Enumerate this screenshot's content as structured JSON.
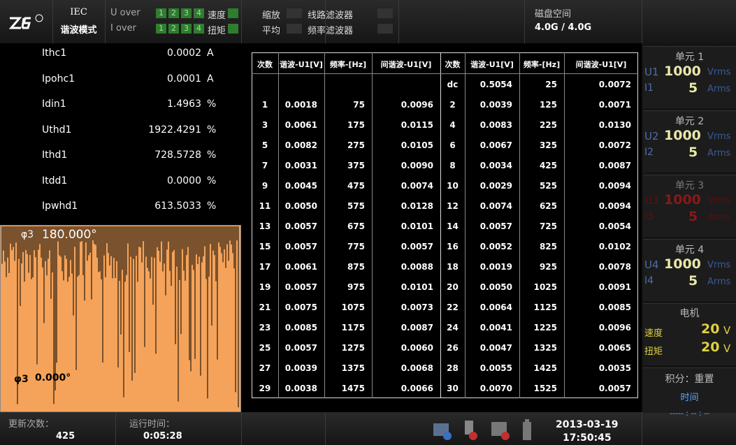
{
  "header": {
    "mode_line1": "IEC",
    "mode_line2": "谐波模式",
    "u_over": "U over",
    "i_over": "I over",
    "channels": [
      "1",
      "2",
      "3",
      "4"
    ],
    "speed": "速度",
    "torque": "扭矩",
    "zoom": "缩放",
    "line_filter": "线路滤波器",
    "average": "平均",
    "freq_filter": "频率滤波器",
    "disk_label": "磁盘空间",
    "disk_value": "4.0G / 4.0G"
  },
  "measurements": [
    {
      "name": "Ithc1",
      "value": "0.0002",
      "unit": "A"
    },
    {
      "name": "Ipohc1",
      "value": "0.0001",
      "unit": "A"
    },
    {
      "name": "Idin1",
      "value": "1.4963",
      "unit": "%"
    },
    {
      "name": "Uthd1",
      "value": "1922.4291",
      "unit": "%"
    },
    {
      "name": "Ithd1",
      "value": "728.5728",
      "unit": "%"
    },
    {
      "name": "Itdd1",
      "value": "0.0000",
      "unit": "%"
    },
    {
      "name": "Ipwhd1",
      "value": "613.5033",
      "unit": "%"
    }
  ],
  "waveform": {
    "top_label": "φ3",
    "top_value": "180.000°",
    "bottom_label": "φ3",
    "bottom_value": "0.000°"
  },
  "table": {
    "headers": [
      "次数",
      "谐波-U1[V]",
      "频率-[Hz]",
      "间谐波-U1[V]",
      "次数",
      "谐波-U1[V]",
      "频率-[Hz]",
      "间谐波-U1[V]"
    ],
    "rows": [
      [
        null,
        null,
        null,
        null,
        "dc",
        "0.5054",
        "25",
        "0.0072"
      ],
      [
        "1",
        "0.0018",
        "75",
        "0.0096",
        "2",
        "0.0039",
        "125",
        "0.0071"
      ],
      [
        "3",
        "0.0061",
        "175",
        "0.0115",
        "4",
        "0.0083",
        "225",
        "0.0130"
      ],
      [
        "5",
        "0.0082",
        "275",
        "0.0105",
        "6",
        "0.0067",
        "325",
        "0.0072"
      ],
      [
        "7",
        "0.0031",
        "375",
        "0.0090",
        "8",
        "0.0034",
        "425",
        "0.0087"
      ],
      [
        "9",
        "0.0045",
        "475",
        "0.0074",
        "10",
        "0.0029",
        "525",
        "0.0094"
      ],
      [
        "11",
        "0.0050",
        "575",
        "0.0128",
        "12",
        "0.0074",
        "625",
        "0.0094"
      ],
      [
        "13",
        "0.0057",
        "675",
        "0.0101",
        "14",
        "0.0057",
        "725",
        "0.0054"
      ],
      [
        "15",
        "0.0057",
        "775",
        "0.0057",
        "16",
        "0.0052",
        "825",
        "0.0102"
      ],
      [
        "17",
        "0.0061",
        "875",
        "0.0088",
        "18",
        "0.0019",
        "925",
        "0.0078"
      ],
      [
        "19",
        "0.0057",
        "975",
        "0.0101",
        "20",
        "0.0050",
        "1025",
        "0.0091"
      ],
      [
        "21",
        "0.0075",
        "1075",
        "0.0073",
        "22",
        "0.0064",
        "1125",
        "0.0085"
      ],
      [
        "23",
        "0.0085",
        "1175",
        "0.0087",
        "24",
        "0.0041",
        "1225",
        "0.0096"
      ],
      [
        "25",
        "0.0057",
        "1275",
        "0.0060",
        "26",
        "0.0047",
        "1325",
        "0.0065"
      ],
      [
        "27",
        "0.0039",
        "1375",
        "0.0068",
        "28",
        "0.0055",
        "1425",
        "0.0035"
      ],
      [
        "29",
        "0.0038",
        "1475",
        "0.0066",
        "30",
        "0.0070",
        "1525",
        "0.0057"
      ]
    ]
  },
  "units": [
    {
      "title": "单元 1",
      "u_label": "U1",
      "u_value": "1000",
      "u_unit": "Vrms",
      "i_label": "I1",
      "i_value": "5",
      "i_unit": "Arms"
    },
    {
      "title": "单元 2",
      "u_label": "U2",
      "u_value": "1000",
      "u_unit": "Vrms",
      "i_label": "I2",
      "i_value": "5",
      "i_unit": "Arms"
    },
    {
      "title": "单元 3",
      "u_label": "U3",
      "u_value": "1000",
      "u_unit": "Vrms",
      "i_label": "I3",
      "i_value": "5",
      "i_unit": "Arms"
    },
    {
      "title": "单元 4",
      "u_label": "U4",
      "u_value": "1000",
      "u_unit": "Vrms",
      "i_label": "I4",
      "i_value": "5",
      "i_unit": "Arms"
    }
  ],
  "motor": {
    "title": "电机",
    "speed_label": "速度",
    "speed_value": "20",
    "speed_unit": "V",
    "torque_label": "扭矩",
    "torque_value": "20",
    "torque_unit": "V"
  },
  "integration": {
    "title": "积分：重置",
    "time_label": "时间",
    "time_value": "----- : -- : --"
  },
  "status": {
    "update_label": "更新次数：",
    "update_value": "425",
    "run_label": "运行时间：",
    "run_value": "0:05:28",
    "date": "2013-03-19",
    "time": "17:50:45"
  }
}
